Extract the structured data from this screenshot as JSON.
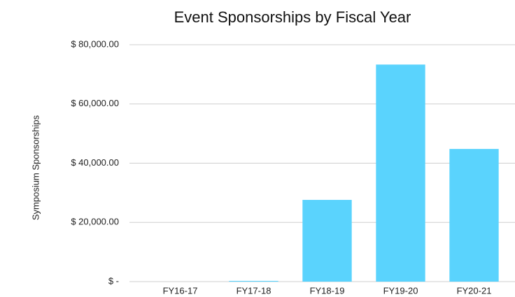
{
  "chart_data": {
    "type": "bar",
    "title": "Event Sponsorships by Fiscal Year",
    "y_label": "Symposium Sponsorships",
    "categories": [
      "FY16-17",
      "FY17-18",
      "FY18-19",
      "FY19-20",
      "FY20-21"
    ],
    "values": [
      0,
      250,
      27600,
      73300,
      44800
    ],
    "color": "#5ad3fd",
    "ylim": [
      0,
      80000
    ],
    "yticks": [
      {
        "value": 0,
        "label": "$ -"
      },
      {
        "value": 20000,
        "label": "$ 20,000.00"
      },
      {
        "value": 40000,
        "label": "$ 40,000.00"
      },
      {
        "value": 60000,
        "label": "$ 60,000.00"
      },
      {
        "value": 80000,
        "label": "$ 80,000.00"
      }
    ],
    "grid": true
  }
}
